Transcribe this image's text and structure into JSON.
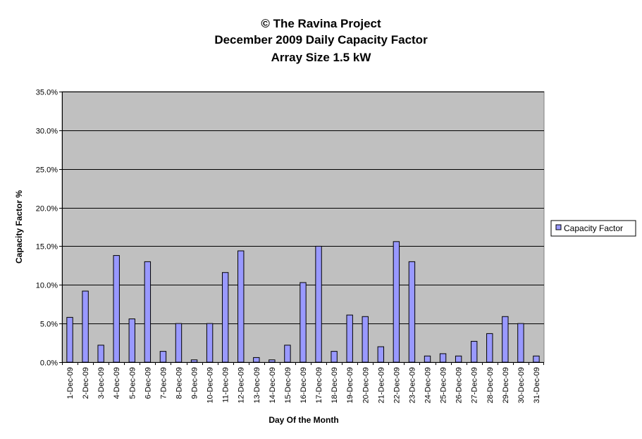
{
  "chart_data": {
    "type": "bar",
    "title_lines": [
      "© The Ravina Project",
      "December 2009 Daily Capacity Factor",
      "Array Size 1.5 kW"
    ],
    "xlabel": "Day Of the Month",
    "ylabel": "Capacity Factor %",
    "ylim": [
      0,
      35
    ],
    "yticks": [
      "0.0%",
      "5.0%",
      "10.0%",
      "15.0%",
      "20.0%",
      "25.0%",
      "30.0%",
      "35.0%"
    ],
    "grid": true,
    "legend_position": "right",
    "categories": [
      "1-Dec-09",
      "2-Dec-09",
      "3-Dec-09",
      "4-Dec-09",
      "5-Dec-09",
      "6-Dec-09",
      "7-Dec-09",
      "8-Dec-09",
      "9-Dec-09",
      "10-Dec-09",
      "11-Dec-09",
      "12-Dec-09",
      "13-Dec-09",
      "14-Dec-09",
      "15-Dec-09",
      "16-Dec-09",
      "17-Dec-09",
      "18-Dec-09",
      "19-Dec-09",
      "20-Dec-09",
      "21-Dec-09",
      "22-Dec-09",
      "23-Dec-09",
      "24-Dec-09",
      "25-Dec-09",
      "26-Dec-09",
      "27-Dec-09",
      "28-Dec-09",
      "29-Dec-09",
      "30-Dec-09",
      "31-Dec-09"
    ],
    "series": [
      {
        "name": "Capacity Factor",
        "color": "#9999ff",
        "values": [
          5.8,
          9.2,
          2.2,
          13.8,
          5.6,
          13.0,
          1.4,
          5.0,
          0.3,
          5.0,
          11.6,
          14.4,
          0.6,
          0.3,
          2.2,
          10.3,
          15.0,
          1.4,
          6.1,
          5.9,
          2.0,
          15.6,
          13.0,
          0.8,
          1.1,
          0.8,
          2.7,
          3.7,
          5.9,
          5.0,
          0.8
        ]
      }
    ],
    "plot_bg": "#c0c0c0"
  }
}
